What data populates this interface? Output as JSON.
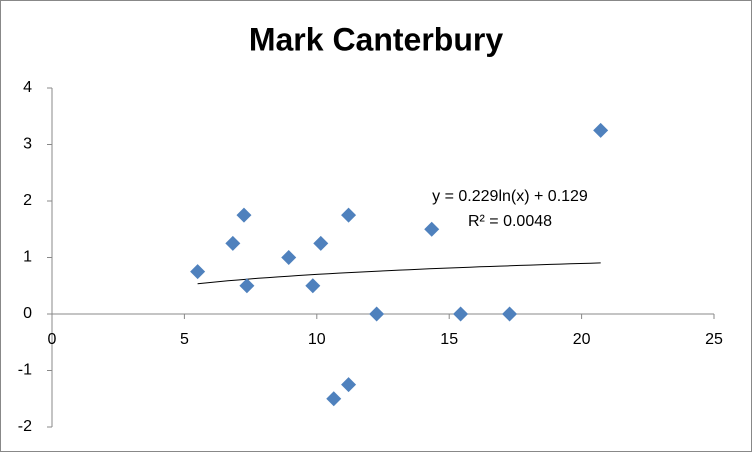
{
  "chart_data": {
    "type": "scatter",
    "title": "Mark Canterbury",
    "series": [
      {
        "name": "Mark Canterbury",
        "color": "#4f81bd",
        "x": [
          5.5,
          6.83,
          7.25,
          7.36,
          8.94,
          9.85,
          10.15,
          10.64,
          11.2,
          11.2,
          12.26,
          14.34,
          15.43,
          17.28,
          20.72
        ],
        "values": [
          0.75,
          1.25,
          1.75,
          0.5,
          1.0,
          0.5,
          1.25,
          -1.5,
          -1.25,
          1.75,
          0,
          1.5,
          0,
          0,
          3.25
        ]
      }
    ],
    "xlim": [
      0,
      25
    ],
    "xticks": [
      0,
      5,
      10,
      15,
      20,
      25
    ],
    "ylim": [
      -2,
      4
    ],
    "yticks": [
      -2,
      -1,
      0,
      1,
      2,
      3,
      4
    ],
    "trendline": {
      "type": "logarithmic",
      "color": "#000000",
      "equation": "y = 0.229ln(x) + 0.129",
      "r_squared": "R² = 0.0048"
    },
    "legend": false,
    "grid": false
  }
}
